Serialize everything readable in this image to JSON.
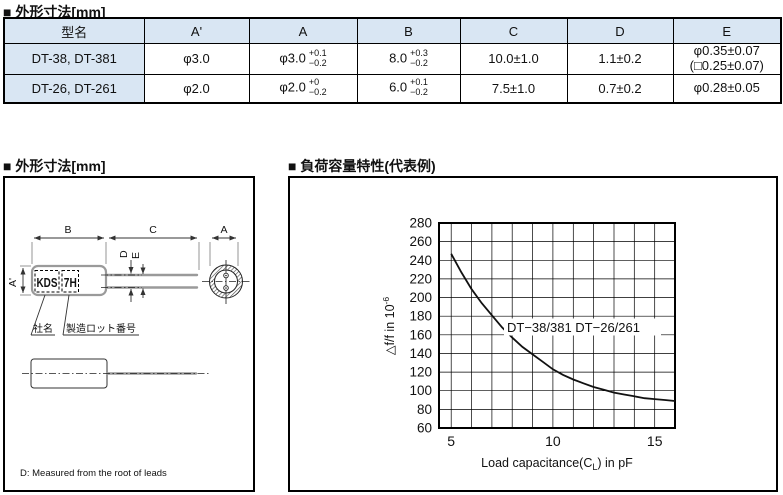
{
  "table_section": {
    "title": "■ 外形寸法[mm]",
    "table": {
      "header_bg": "#d9e6f3",
      "columns": [
        "型名",
        "A'",
        "A",
        "B",
        "C",
        "D",
        "E"
      ],
      "rows": [
        {
          "model": "DT-38, DT-381",
          "a_prime": "φ3.0",
          "a_base": "φ3.0",
          "a_tol_plus": "+0.1",
          "a_tol_minus": "−0.2",
          "b_base": "8.0",
          "b_tol_plus": "+0.3",
          "b_tol_minus": "−0.2",
          "c": "10.0±1.0",
          "d": "1.1±0.2",
          "e_line1": "φ0.35±0.07",
          "e_line2": "(□0.25±0.07)"
        },
        {
          "model": "DT-26, DT-261",
          "a_prime": "φ2.0",
          "a_base": "φ2.0",
          "a_tol_plus": "+0",
          "a_tol_minus": "−0.2",
          "b_base": "6.0",
          "b_tol_plus": "+0.1",
          "b_tol_minus": "−0.2",
          "c": "7.5±1.0",
          "d": "0.7±0.2",
          "e_line1": "φ0.28±0.05",
          "e_line2": ""
        }
      ]
    }
  },
  "drawing_section": {
    "title": "■ 外形寸法[mm]",
    "labels": {
      "b": "B",
      "c": "C",
      "a": "A",
      "a_prime": "A'",
      "d": "D",
      "e": "E",
      "brand": "KDS",
      "lot": "7H",
      "company_callout": "社名",
      "lot_callout": "製造ロット番号",
      "note": "D: Measured from the root of leads"
    }
  },
  "chart_section": {
    "title": "■ 負荷容量特性(代表例)"
  },
  "chart_data": {
    "type": "line",
    "title": "負荷容量特性(代表例)",
    "xlabel": "Load capacitance(CL) in pF",
    "xlabel_parts": [
      "Load capacitance(C",
      "L",
      ") in pF"
    ],
    "ylabel": "△f/f in 10^-6",
    "ylabel_parts": [
      "△f/f in 10",
      "-6"
    ],
    "xlim": [
      4.4,
      16
    ],
    "ylim": [
      60,
      280
    ],
    "xticks": [
      5,
      10,
      15
    ],
    "x_gridlines": [
      5,
      6,
      7,
      8,
      9,
      10,
      11,
      12,
      13,
      14,
      15
    ],
    "yticks": [
      60,
      80,
      100,
      120,
      140,
      160,
      180,
      200,
      220,
      240,
      260,
      280
    ],
    "grid": true,
    "legend_position": "inside-center",
    "annotation": "DT−38/381 DT−26/261",
    "series": [
      {
        "name": "DT-38/381, DT-26/261",
        "x": [
          5,
          5.5,
          6,
          6.5,
          7,
          7.5,
          8,
          8.5,
          9,
          9.5,
          10,
          10.5,
          11,
          11.5,
          12,
          12.5,
          13,
          13.5,
          14,
          14.5,
          15,
          15.5,
          16
        ],
        "y": [
          247,
          227,
          209,
          194,
          181,
          168,
          157,
          147,
          139,
          131,
          123,
          117,
          112,
          108,
          104,
          101,
          98,
          96,
          94,
          92,
          91,
          90,
          89
        ]
      }
    ]
  }
}
